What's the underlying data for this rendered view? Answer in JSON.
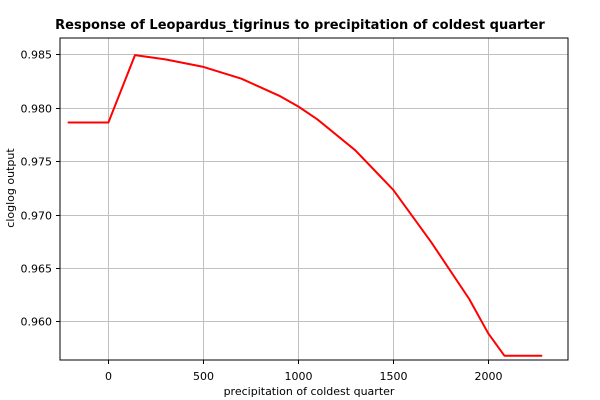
{
  "chart_data": {
    "type": "line",
    "title": "Response of Leopardus_tigrinus to precipitation of coldest quarter",
    "xlabel": "precipitation of coldest quarter",
    "ylabel": "cloglog output",
    "xlim": [
      -255,
      2420
    ],
    "ylim": [
      0.9564,
      0.9865
    ],
    "x_ticks": [
      0,
      500,
      1000,
      1500,
      2000
    ],
    "y_ticks": [
      0.96,
      0.965,
      0.97,
      0.975,
      0.98,
      0.985
    ],
    "x_tick_labels": [
      "0",
      "500",
      "1000",
      "1500",
      "2000"
    ],
    "y_tick_labels": [
      "0.960",
      "0.965",
      "0.970",
      "0.975",
      "0.980",
      "0.985"
    ],
    "grid": true,
    "series": [
      {
        "color": "#ff0000",
        "x": [
          -210,
          0,
          140,
          300,
          500,
          700,
          900,
          1000,
          1100,
          1300,
          1500,
          1700,
          1900,
          2000,
          2085,
          2280
        ],
        "y": [
          0.9786,
          0.9786,
          0.9849,
          0.9845,
          0.9838,
          0.9827,
          0.9811,
          0.9801,
          0.9789,
          0.976,
          0.9723,
          0.9674,
          0.9621,
          0.9589,
          0.9568,
          0.9568
        ]
      }
    ]
  }
}
